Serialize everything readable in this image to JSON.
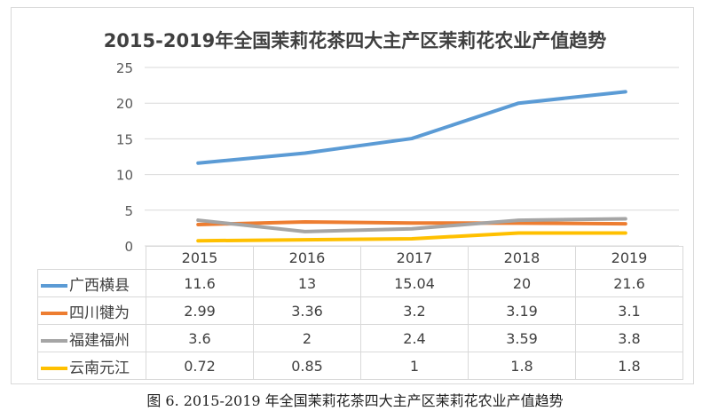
{
  "chart_data": {
    "type": "line",
    "title": "2015-2019年全国茉莉花茶四大主产区茉莉花农业产值趋势",
    "categories": [
      "2015",
      "2016",
      "2017",
      "2018",
      "2019"
    ],
    "ylim": [
      0,
      25
    ],
    "yticks": [
      "0",
      "5",
      "10",
      "15",
      "20",
      "25"
    ],
    "grid": true,
    "legend": "data-table",
    "series": [
      {
        "name": "广西横县",
        "color": "#5b9bd5",
        "values": [
          11.6,
          13,
          15.04,
          20,
          21.6
        ],
        "labels": [
          "11.6",
          "13",
          "15.04",
          "20",
          "21.6"
        ]
      },
      {
        "name": "四川犍为",
        "color": "#ed7d31",
        "values": [
          2.99,
          3.36,
          3.2,
          3.19,
          3.1
        ],
        "labels": [
          "2.99",
          "3.36",
          "3.2",
          "3.19",
          "3.1"
        ]
      },
      {
        "name": "福建福州",
        "color": "#a5a5a5",
        "values": [
          3.6,
          2,
          2.4,
          3.59,
          3.8
        ],
        "labels": [
          "3.6",
          "2",
          "2.4",
          "3.59",
          "3.8"
        ]
      },
      {
        "name": "云南元江",
        "color": "#ffc000",
        "values": [
          0.72,
          0.85,
          1,
          1.8,
          1.8
        ],
        "labels": [
          "0.72",
          "0.85",
          "1",
          "1.8",
          "1.8"
        ]
      }
    ]
  },
  "caption": "图 6. 2015-2019 年全国茉莉花茶四大主产区茉莉花农业产值趋势"
}
